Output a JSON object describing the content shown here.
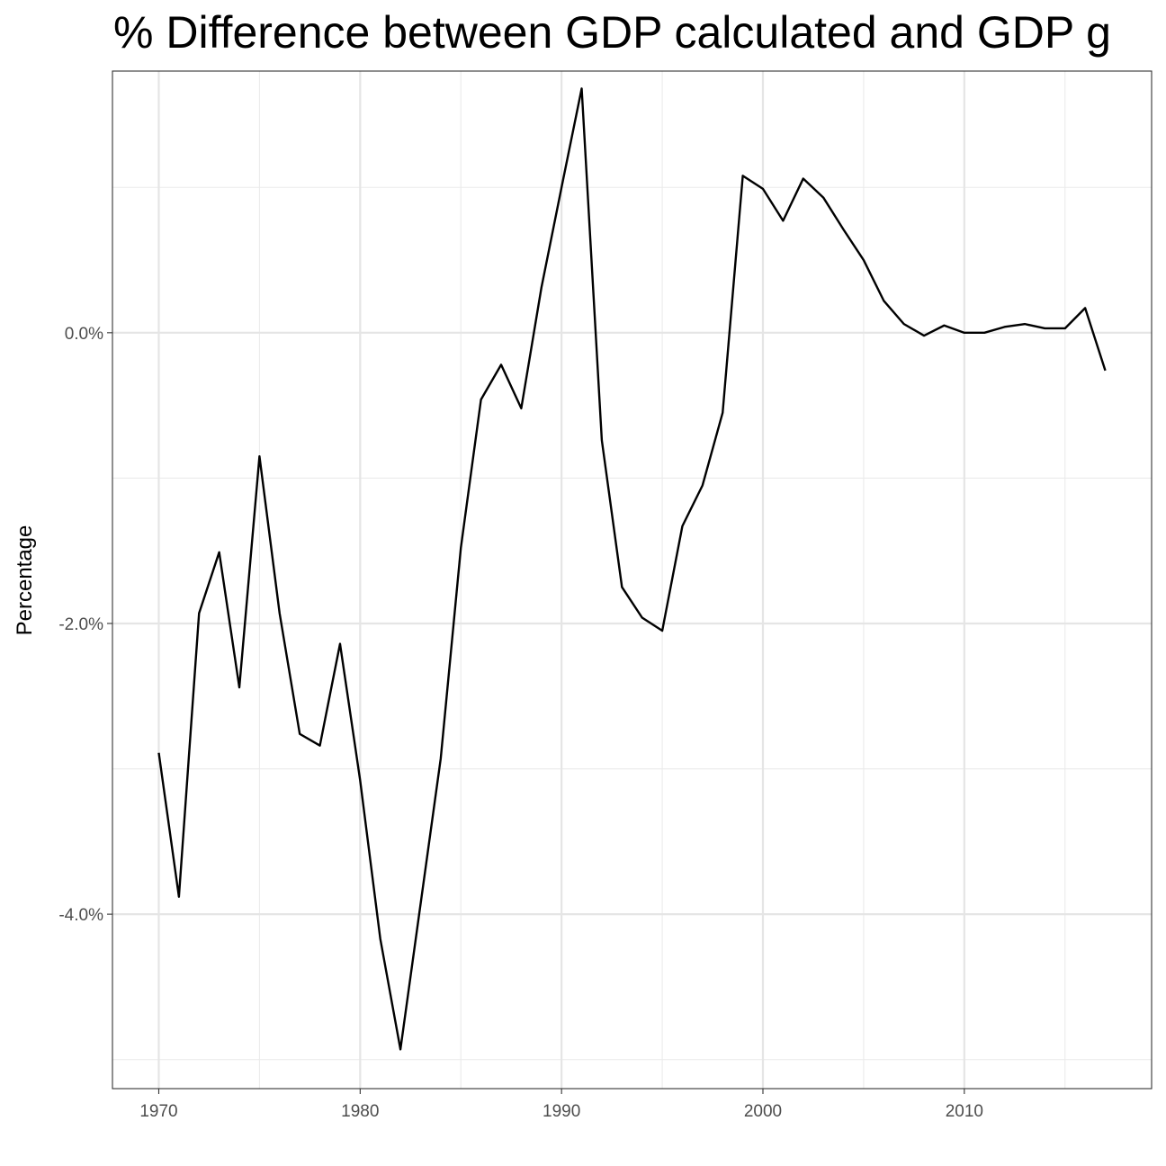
{
  "chart_data": {
    "type": "line",
    "title": "% Difference between GDP calculated and GDP g",
    "xlabel": "",
    "ylabel": "Percentage",
    "xlim": [
      1967.7,
      1969.9
    ],
    "ylim": [
      -5.2,
      1.8
    ],
    "x_ticks": [
      1970,
      1980,
      1990,
      2000,
      2010
    ],
    "y_ticks": [
      0,
      -2,
      -4
    ],
    "y_tick_labels": [
      "0.0%",
      "-2.0%",
      "-4.0%"
    ],
    "grid": true,
    "legend": "none",
    "series": [
      {
        "x": [
          1970,
          1971,
          1972,
          1973,
          1974,
          1975,
          1976,
          1977,
          1978,
          1979,
          1980,
          1981,
          1982,
          1983,
          1984,
          1985,
          1986,
          1987,
          1988,
          1989,
          1990,
          1991,
          1992,
          1993,
          1994,
          1995,
          1996,
          1997,
          1998,
          1999,
          2000,
          2001,
          2002,
          2003,
          2004,
          2005,
          2006,
          2007,
          2008,
          2009,
          2010,
          2011,
          2012,
          2013,
          2014,
          2015,
          2016,
          2017
        ],
        "values": [
          -2.89,
          -3.88,
          -1.93,
          -1.51,
          -2.44,
          -0.85,
          -1.93,
          -2.76,
          -2.84,
          -2.14,
          -3.08,
          -4.17,
          -4.93,
          -3.93,
          -2.93,
          -1.48,
          -0.46,
          -0.22,
          -0.52,
          0.31,
          1.0,
          1.68,
          -0.74,
          -1.75,
          -1.96,
          -2.05,
          -1.33,
          -1.05,
          -0.55,
          1.08,
          0.99,
          0.77,
          1.06,
          0.93,
          0.71,
          0.5,
          0.22,
          0.06,
          -0.02,
          0.05,
          0.0,
          0.0,
          0.04,
          0.06,
          0.03,
          0.03,
          0.17,
          -0.26
        ],
        "color": "#000000"
      }
    ]
  }
}
